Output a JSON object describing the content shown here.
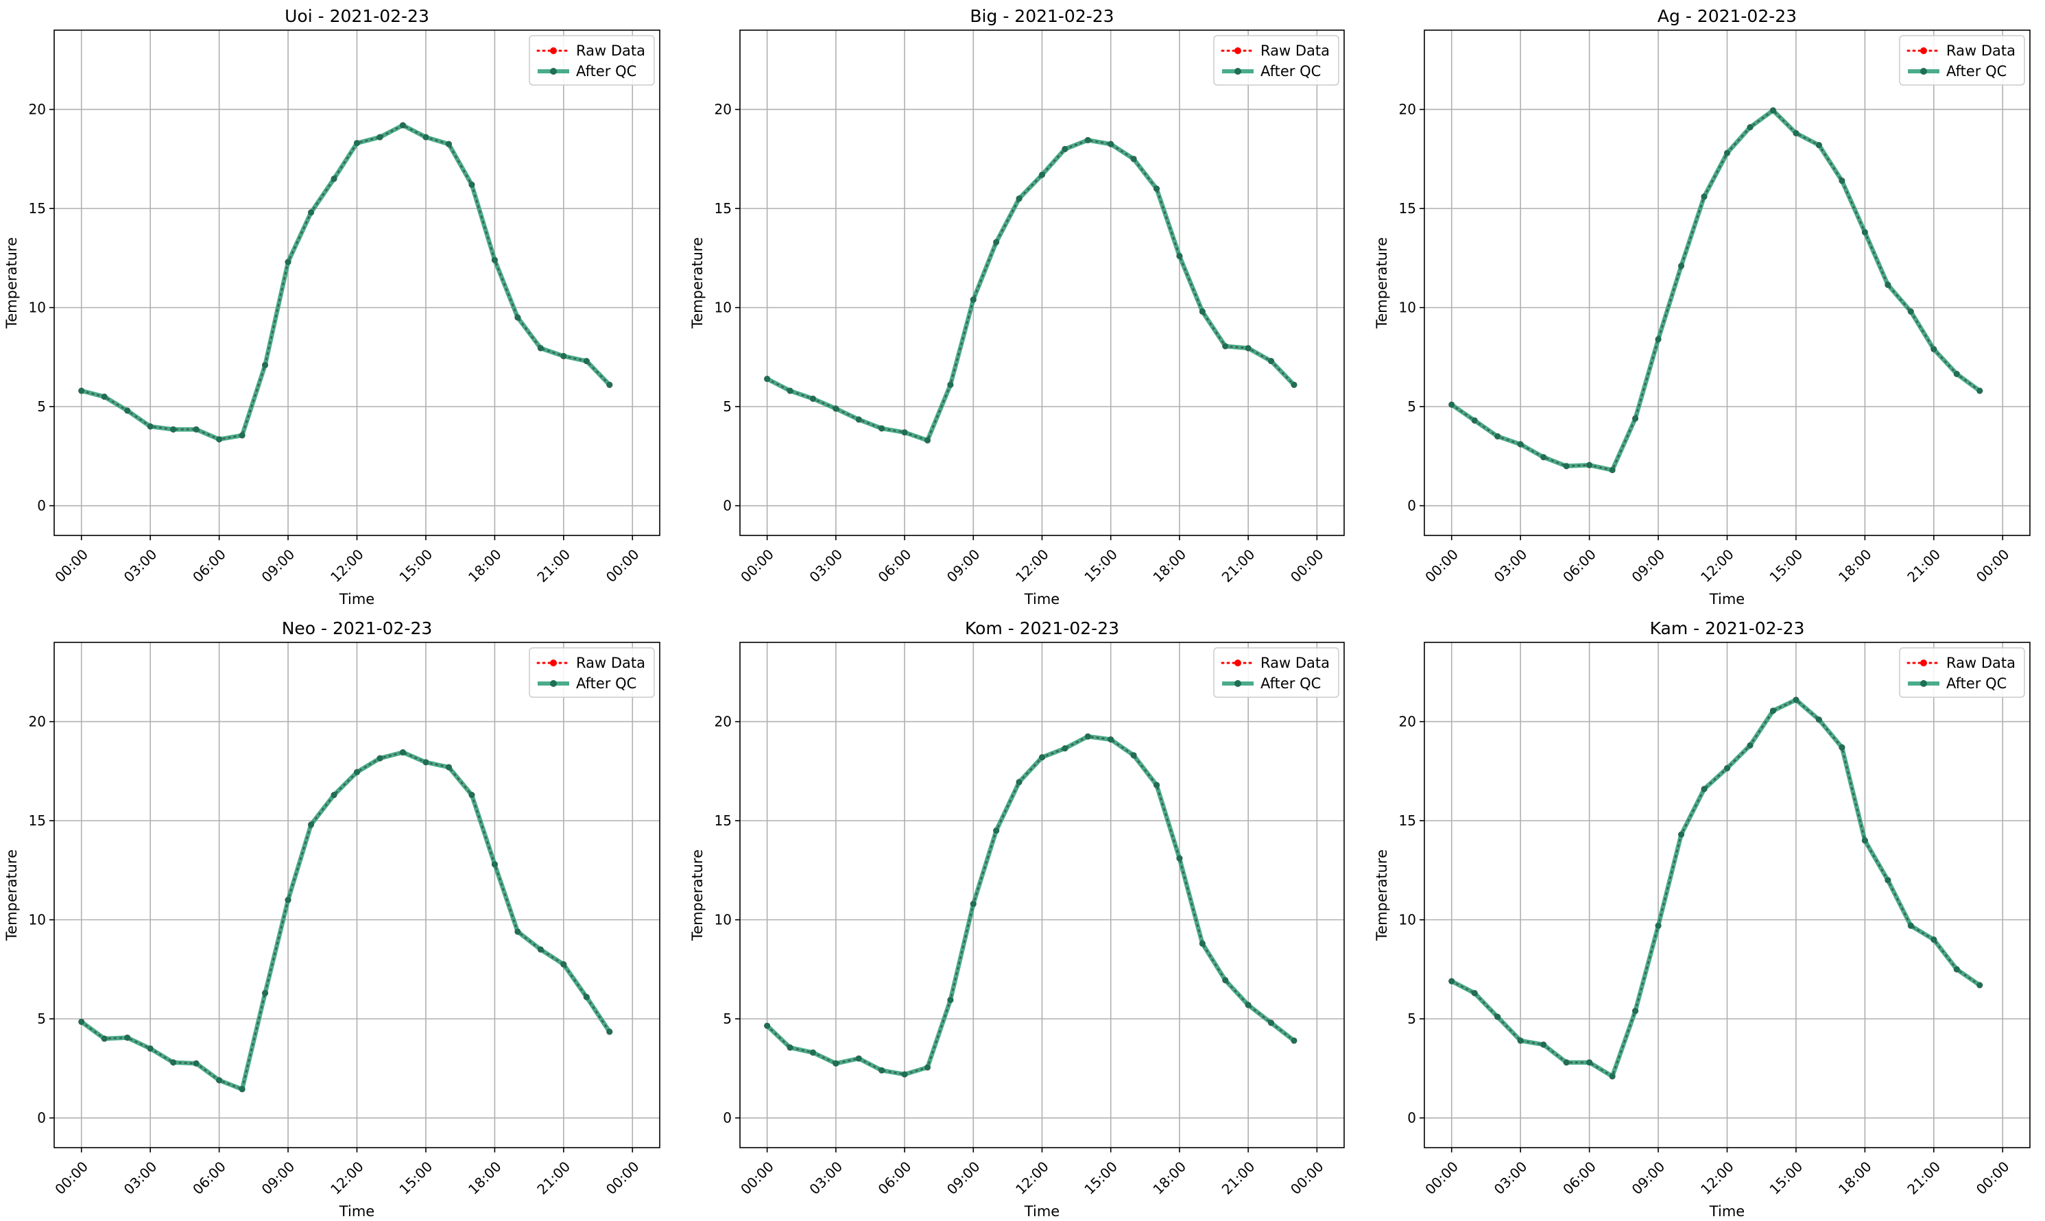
{
  "figure": {
    "legend_position": "top-right",
    "colors": {
      "raw": "#ff0000",
      "qc": "#2a9d77",
      "grid": "#b0b0b0"
    }
  },
  "chart_data": [
    {
      "type": "line",
      "title": "Uoi - 2021-02-23",
      "xlabel": "Time",
      "ylabel": "Temperature",
      "x_tick_labels": [
        "00:00",
        "03:00",
        "06:00",
        "09:00",
        "12:00",
        "15:00",
        "18:00",
        "21:00",
        "00:00"
      ],
      "y_ticks": [
        0,
        5,
        10,
        15,
        20
      ],
      "ylim": [
        -1.5,
        24
      ],
      "grid": true,
      "x_hours": [
        0,
        1,
        2,
        3,
        4,
        5,
        6,
        7,
        8,
        9,
        10,
        11,
        12,
        13,
        14,
        15,
        16,
        17,
        18,
        19,
        20,
        21,
        22,
        23
      ],
      "series": [
        {
          "name": "Raw Data",
          "values": [
            5.8,
            5.5,
            4.8,
            4.0,
            3.85,
            3.85,
            3.35,
            3.55,
            7.1,
            12.3,
            14.8,
            16.5,
            18.3,
            18.6,
            19.2,
            18.6,
            18.25,
            16.2,
            12.4,
            9.5,
            7.95,
            7.55,
            7.3,
            6.1
          ]
        },
        {
          "name": "After QC",
          "values": [
            5.8,
            5.5,
            4.8,
            4.0,
            3.85,
            3.85,
            3.35,
            3.55,
            7.1,
            12.3,
            14.8,
            16.5,
            18.3,
            18.6,
            19.2,
            18.6,
            18.25,
            16.2,
            12.4,
            9.5,
            7.95,
            7.55,
            7.3,
            6.1
          ]
        }
      ]
    },
    {
      "type": "line",
      "title": "Big - 2021-02-23",
      "xlabel": "Time",
      "ylabel": "Temperature",
      "x_tick_labels": [
        "00:00",
        "03:00",
        "06:00",
        "09:00",
        "12:00",
        "15:00",
        "18:00",
        "21:00",
        "00:00"
      ],
      "y_ticks": [
        0,
        5,
        10,
        15,
        20
      ],
      "ylim": [
        -1.5,
        24
      ],
      "grid": true,
      "x_hours": [
        0,
        1,
        2,
        3,
        4,
        5,
        6,
        7,
        8,
        9,
        10,
        11,
        12,
        13,
        14,
        15,
        16,
        17,
        18,
        19,
        20,
        21,
        22,
        23
      ],
      "series": [
        {
          "name": "Raw Data",
          "values": [
            6.4,
            5.8,
            5.4,
            4.9,
            4.35,
            3.9,
            3.7,
            3.3,
            6.1,
            10.4,
            13.3,
            15.5,
            16.7,
            18.0,
            18.45,
            18.25,
            17.5,
            16.0,
            12.6,
            9.8,
            8.05,
            7.95,
            7.3,
            6.1
          ]
        },
        {
          "name": "After QC",
          "values": [
            6.4,
            5.8,
            5.4,
            4.9,
            4.35,
            3.9,
            3.7,
            3.3,
            6.1,
            10.4,
            13.3,
            15.5,
            16.7,
            18.0,
            18.45,
            18.25,
            17.5,
            16.0,
            12.6,
            9.8,
            8.05,
            7.95,
            7.3,
            6.1
          ]
        }
      ]
    },
    {
      "type": "line",
      "title": "Ag - 2021-02-23",
      "xlabel": "Time",
      "ylabel": "Temperature",
      "x_tick_labels": [
        "00:00",
        "03:00",
        "06:00",
        "09:00",
        "12:00",
        "15:00",
        "18:00",
        "21:00",
        "00:00"
      ],
      "y_ticks": [
        0,
        5,
        10,
        15,
        20
      ],
      "ylim": [
        -1.5,
        24
      ],
      "grid": true,
      "x_hours": [
        0,
        1,
        2,
        3,
        4,
        5,
        6,
        7,
        8,
        9,
        10,
        11,
        12,
        13,
        14,
        15,
        16,
        17,
        18,
        19,
        20,
        21,
        22,
        23
      ],
      "series": [
        {
          "name": "Raw Data",
          "values": [
            5.1,
            4.3,
            3.5,
            3.1,
            2.45,
            2.0,
            2.05,
            1.8,
            4.4,
            8.4,
            12.1,
            15.6,
            17.8,
            19.1,
            19.95,
            18.8,
            18.2,
            16.4,
            13.8,
            11.15,
            9.8,
            7.9,
            6.65,
            5.8
          ]
        },
        {
          "name": "After QC",
          "values": [
            5.1,
            4.3,
            3.5,
            3.1,
            2.45,
            2.0,
            2.05,
            1.8,
            4.4,
            8.4,
            12.1,
            15.6,
            17.8,
            19.1,
            19.95,
            18.8,
            18.2,
            16.4,
            13.8,
            11.15,
            9.8,
            7.9,
            6.65,
            5.8
          ]
        }
      ]
    },
    {
      "type": "line",
      "title": "Neo - 2021-02-23",
      "xlabel": "Time",
      "ylabel": "Temperature",
      "x_tick_labels": [
        "00:00",
        "03:00",
        "06:00",
        "09:00",
        "12:00",
        "15:00",
        "18:00",
        "21:00",
        "00:00"
      ],
      "y_ticks": [
        0,
        5,
        10,
        15,
        20
      ],
      "ylim": [
        -1.5,
        24
      ],
      "grid": true,
      "x_hours": [
        0,
        1,
        2,
        3,
        4,
        5,
        6,
        7,
        8,
        9,
        10,
        11,
        12,
        13,
        14,
        15,
        16,
        17,
        18,
        19,
        20,
        21,
        22,
        23
      ],
      "series": [
        {
          "name": "Raw Data",
          "values": [
            4.85,
            4.0,
            4.05,
            3.5,
            2.8,
            2.75,
            1.9,
            1.45,
            6.3,
            11.0,
            14.8,
            16.3,
            17.45,
            18.15,
            18.45,
            17.95,
            17.7,
            16.3,
            12.8,
            9.4,
            8.5,
            7.75,
            6.1,
            4.35
          ]
        },
        {
          "name": "After QC",
          "values": [
            4.85,
            4.0,
            4.05,
            3.5,
            2.8,
            2.75,
            1.9,
            1.45,
            6.3,
            11.0,
            14.8,
            16.3,
            17.45,
            18.15,
            18.45,
            17.95,
            17.7,
            16.3,
            12.8,
            9.4,
            8.5,
            7.75,
            6.1,
            4.35
          ]
        }
      ]
    },
    {
      "type": "line",
      "title": "Kom - 2021-02-23",
      "xlabel": "Time",
      "ylabel": "Temperature",
      "x_tick_labels": [
        "00:00",
        "03:00",
        "06:00",
        "09:00",
        "12:00",
        "15:00",
        "18:00",
        "21:00",
        "00:00"
      ],
      "y_ticks": [
        0,
        5,
        10,
        15,
        20
      ],
      "ylim": [
        -1.5,
        24
      ],
      "grid": true,
      "x_hours": [
        0,
        1,
        2,
        3,
        4,
        5,
        6,
        7,
        8,
        9,
        10,
        11,
        12,
        13,
        14,
        15,
        16,
        17,
        18,
        19,
        20,
        21,
        22,
        23
      ],
      "series": [
        {
          "name": "Raw Data",
          "values": [
            4.65,
            3.55,
            3.3,
            2.75,
            3.0,
            2.4,
            2.2,
            2.55,
            5.95,
            10.8,
            14.5,
            16.95,
            18.2,
            18.65,
            19.25,
            19.1,
            18.3,
            16.8,
            13.1,
            8.8,
            6.95,
            5.7,
            4.8,
            3.9
          ]
        },
        {
          "name": "After QC",
          "values": [
            4.65,
            3.55,
            3.3,
            2.75,
            3.0,
            2.4,
            2.2,
            2.55,
            5.95,
            10.8,
            14.5,
            16.95,
            18.2,
            18.65,
            19.25,
            19.1,
            18.3,
            16.8,
            13.1,
            8.8,
            6.95,
            5.7,
            4.8,
            3.9
          ]
        }
      ]
    },
    {
      "type": "line",
      "title": "Kam - 2021-02-23",
      "xlabel": "Time",
      "ylabel": "Temperature",
      "x_tick_labels": [
        "00:00",
        "03:00",
        "06:00",
        "09:00",
        "12:00",
        "15:00",
        "18:00",
        "21:00",
        "00:00"
      ],
      "y_ticks": [
        0,
        5,
        10,
        15,
        20
      ],
      "ylim": [
        -1.5,
        24
      ],
      "grid": true,
      "x_hours": [
        0,
        1,
        2,
        3,
        4,
        5,
        6,
        7,
        8,
        9,
        10,
        11,
        12,
        13,
        14,
        15,
        16,
        17,
        18,
        19,
        20,
        21,
        22,
        23
      ],
      "series": [
        {
          "name": "Raw Data",
          "values": [
            6.9,
            6.3,
            5.1,
            3.9,
            3.7,
            2.8,
            2.8,
            2.1,
            5.4,
            9.7,
            14.3,
            16.6,
            17.65,
            18.8,
            20.55,
            21.1,
            20.1,
            18.7,
            14.0,
            12.0,
            9.7,
            9.0,
            7.5,
            6.7
          ]
        },
        {
          "name": "After QC",
          "values": [
            6.9,
            6.3,
            5.1,
            3.9,
            3.7,
            2.8,
            2.8,
            2.1,
            5.4,
            9.7,
            14.3,
            16.6,
            17.65,
            18.8,
            20.55,
            21.1,
            20.1,
            18.7,
            14.0,
            12.0,
            9.7,
            9.0,
            7.5,
            6.7
          ]
        }
      ]
    }
  ]
}
